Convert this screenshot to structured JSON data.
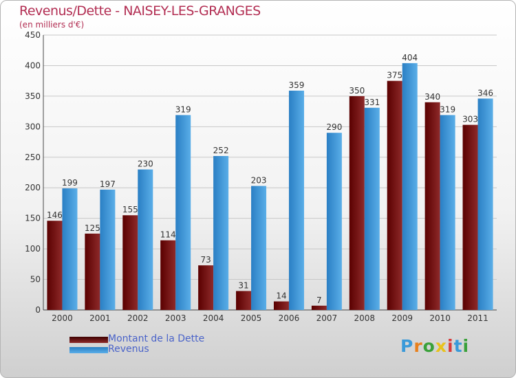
{
  "title": "Revenus/Dette - NAISEY-LES-GRANGES",
  "subtitle": "(en milliers d'€)",
  "logo": {
    "letters": [
      "P",
      "r",
      "o",
      "x",
      "i",
      "t",
      "i"
    ],
    "colors": [
      "#3a9ad9",
      "#e8801c",
      "#3aa13a",
      "#e8c21c",
      "#d93a3a",
      "#3a9ad9",
      "#3aa13a"
    ]
  },
  "colors": {
    "dette": "#7a1a1a",
    "revenus": "#3d9ae0"
  },
  "chart_data": {
    "type": "bar",
    "categories": [
      "2000",
      "2001",
      "2002",
      "2003",
      "2004",
      "2005",
      "2006",
      "2007",
      "2008",
      "2009",
      "2010",
      "2011"
    ],
    "series": [
      {
        "name": "Montant de la Dette",
        "values": [
          146,
          125,
          155,
          114,
          73,
          31,
          14,
          7,
          350,
          375,
          340,
          303
        ]
      },
      {
        "name": "Revenus",
        "values": [
          199,
          197,
          230,
          319,
          252,
          203,
          359,
          290,
          331,
          404,
          319,
          346
        ]
      }
    ],
    "ylim": [
      0,
      450
    ],
    "yticks": [
      0,
      50,
      100,
      150,
      200,
      250,
      300,
      350,
      400,
      450
    ],
    "grid": true,
    "legend": "bottom-left"
  }
}
